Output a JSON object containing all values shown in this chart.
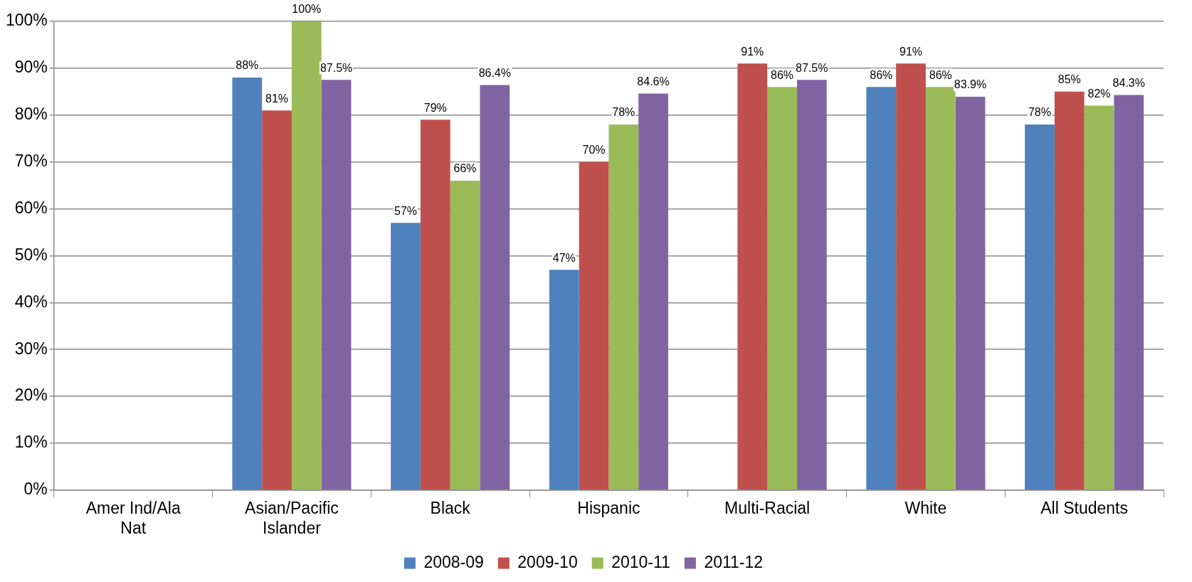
{
  "chart_data": {
    "type": "bar",
    "categories": [
      "Amer Ind/Ala Nat",
      "Asian/Pacific Islander",
      "Black",
      "Hispanic",
      "Multi-Racial",
      "White",
      "All Students"
    ],
    "series": [
      {
        "name": "2008-09",
        "color": "#4f81bd",
        "values": [
          null,
          88,
          57,
          47,
          null,
          86,
          78
        ],
        "value_labels": [
          null,
          "88%",
          "57%",
          "47%",
          null,
          "86%",
          "78%"
        ]
      },
      {
        "name": "2009-10",
        "color": "#c0504d",
        "values": [
          null,
          81,
          79,
          70,
          91,
          91,
          85
        ],
        "value_labels": [
          null,
          "81%",
          "79%",
          "70%",
          "91%",
          "91%",
          "85%"
        ]
      },
      {
        "name": "2010-11",
        "color": "#9bbb59",
        "values": [
          null,
          100,
          66,
          78,
          86,
          86,
          82
        ],
        "value_labels": [
          null,
          "100%",
          "66%",
          "78%",
          "86%",
          "86%",
          "82%"
        ]
      },
      {
        "name": "2011-12",
        "color": "#8064a2",
        "values": [
          null,
          87.5,
          86.4,
          84.6,
          87.5,
          83.9,
          84.3
        ],
        "value_labels": [
          null,
          "87.5%",
          "86.4%",
          "84.6%",
          "87.5%",
          "83.9%",
          "84.3%"
        ]
      }
    ],
    "ylim": [
      0,
      100
    ],
    "yticks": [
      {
        "value": 0,
        "label": "0%"
      },
      {
        "value": 10,
        "label": "10%"
      },
      {
        "value": 20,
        "label": "20%"
      },
      {
        "value": 30,
        "label": "30%"
      },
      {
        "value": 40,
        "label": "40%"
      },
      {
        "value": 50,
        "label": "50%"
      },
      {
        "value": 60,
        "label": "60%"
      },
      {
        "value": 70,
        "label": "70%"
      },
      {
        "value": 80,
        "label": "80%"
      },
      {
        "value": 90,
        "label": "90%"
      },
      {
        "value": 100,
        "label": "100%"
      }
    ],
    "grid": "y",
    "legend": "bottom"
  }
}
